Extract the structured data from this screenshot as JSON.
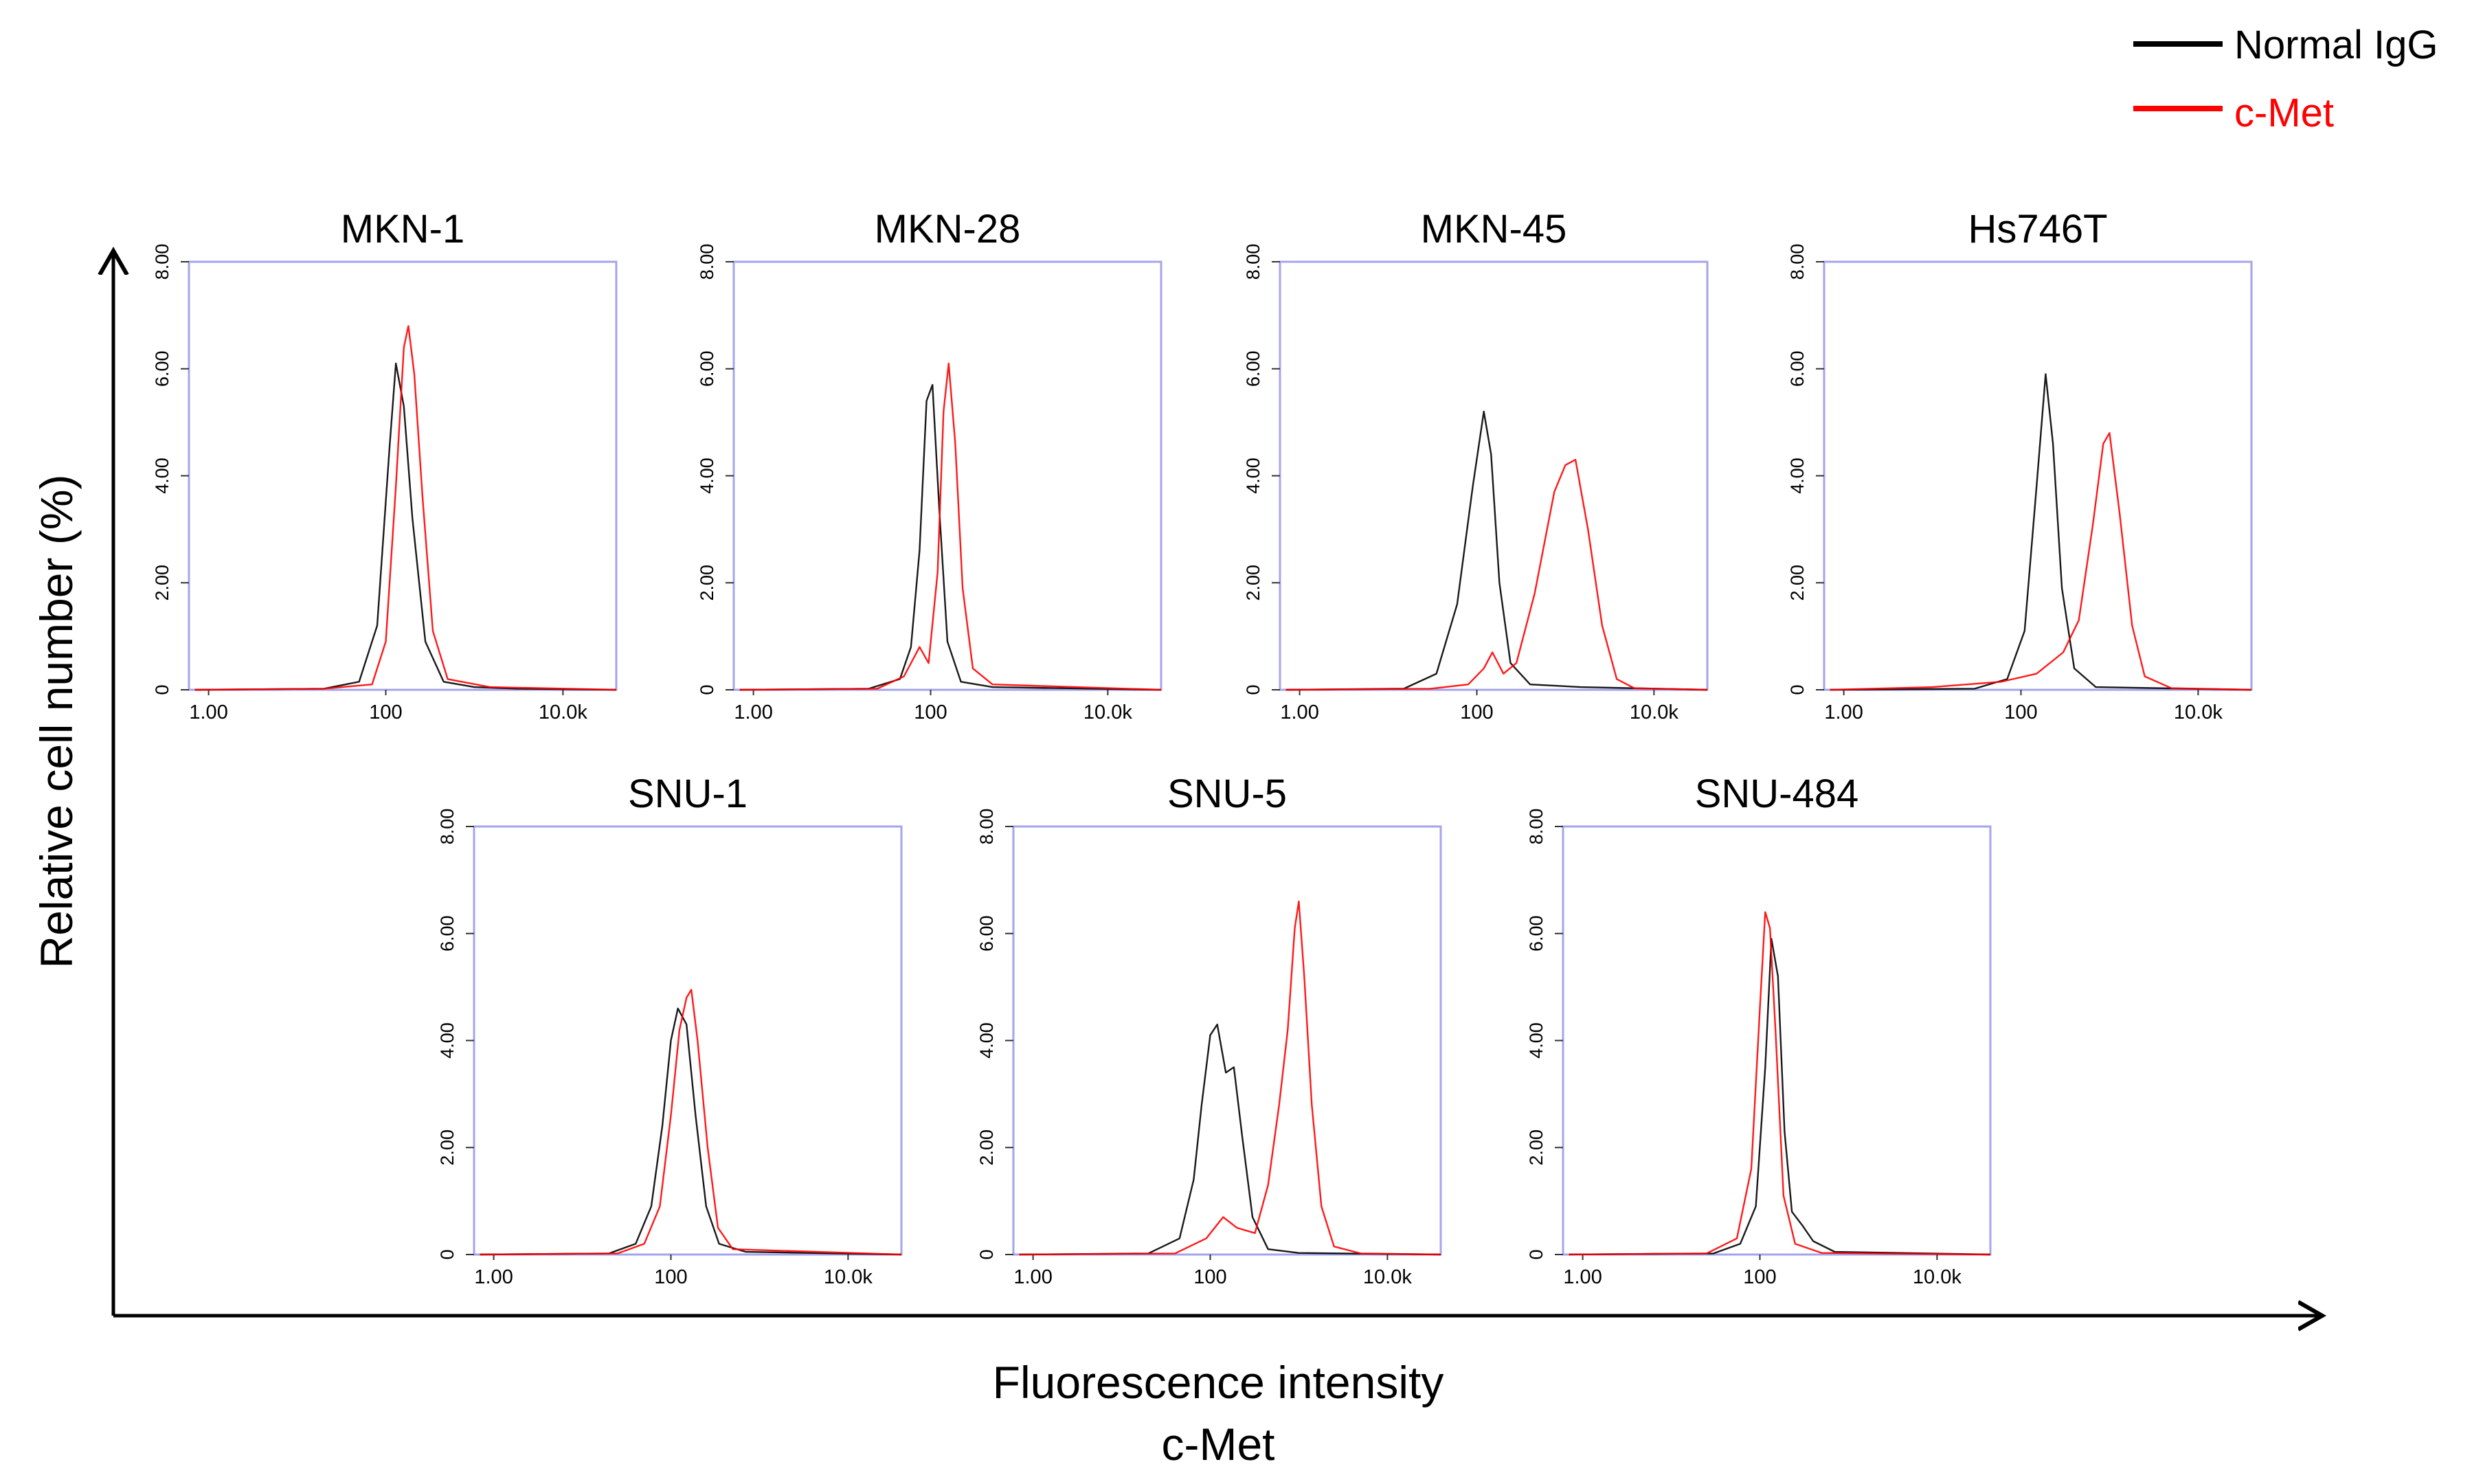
{
  "legend": {
    "entries": [
      {
        "label": "Normal IgG",
        "color": "#000000"
      },
      {
        "label": "c-Met",
        "color": "#ff0000"
      }
    ]
  },
  "axes": {
    "y_label": "Relative cell number (%)",
    "x_label_line1": "Fluorescence intensity",
    "x_label_line2": "c-Met"
  },
  "chart_data": [
    {
      "type": "line",
      "title": "MKN-1",
      "x_scale": "log",
      "xlim": [
        0.6,
        40000
      ],
      "ylim": [
        0,
        8
      ],
      "x_ticks": [
        {
          "value": 1,
          "label": "1.00"
        },
        {
          "value": 100,
          "label": "100"
        },
        {
          "value": 10000,
          "label": "10.0k"
        }
      ],
      "y_ticks": [
        {
          "value": 0,
          "label": "0"
        },
        {
          "value": 2,
          "label": "2.00"
        },
        {
          "value": 4,
          "label": "4.00"
        },
        {
          "value": 6,
          "label": "6.00"
        },
        {
          "value": 8,
          "label": "8.00"
        }
      ],
      "series": [
        {
          "name": "Normal IgG",
          "color": "#000000",
          "points": [
            [
              0.7,
              0
            ],
            [
              20,
              0.02
            ],
            [
              50,
              0.15
            ],
            [
              80,
              1.2
            ],
            [
              110,
              4.5
            ],
            [
              130,
              6.1
            ],
            [
              160,
              5.3
            ],
            [
              200,
              3.2
            ],
            [
              280,
              0.9
            ],
            [
              450,
              0.15
            ],
            [
              1000,
              0.05
            ],
            [
              3000,
              0.02
            ],
            [
              40000,
              0
            ]
          ]
        },
        {
          "name": "c-Met",
          "color": "#ff0000",
          "points": [
            [
              0.7,
              0
            ],
            [
              20,
              0.02
            ],
            [
              70,
              0.1
            ],
            [
              100,
              0.9
            ],
            [
              130,
              3.8
            ],
            [
              160,
              6.4
            ],
            [
              180,
              6.8
            ],
            [
              210,
              5.9
            ],
            [
              260,
              3.6
            ],
            [
              340,
              1.1
            ],
            [
              500,
              0.2
            ],
            [
              1500,
              0.05
            ],
            [
              40000,
              0
            ]
          ]
        }
      ]
    },
    {
      "type": "line",
      "title": "MKN-28",
      "x_scale": "log",
      "xlim": [
        0.6,
        40000
      ],
      "ylim": [
        0,
        8
      ],
      "x_ticks": [
        {
          "value": 1,
          "label": "1.00"
        },
        {
          "value": 100,
          "label": "100"
        },
        {
          "value": 10000,
          "label": "10.0k"
        }
      ],
      "y_ticks": [
        {
          "value": 0,
          "label": "0"
        },
        {
          "value": 2,
          "label": "2.00"
        },
        {
          "value": 4,
          "label": "4.00"
        },
        {
          "value": 6,
          "label": "6.00"
        },
        {
          "value": 8,
          "label": "8.00"
        }
      ],
      "series": [
        {
          "name": "Normal IgG",
          "color": "#000000",
          "points": [
            [
              0.7,
              0
            ],
            [
              20,
              0.02
            ],
            [
              45,
              0.2
            ],
            [
              60,
              0.8
            ],
            [
              75,
              2.6
            ],
            [
              90,
              5.4
            ],
            [
              105,
              5.7
            ],
            [
              125,
              3.4
            ],
            [
              155,
              0.9
            ],
            [
              220,
              0.15
            ],
            [
              500,
              0.05
            ],
            [
              40000,
              0
            ]
          ]
        },
        {
          "name": "c-Met",
          "color": "#ff0000",
          "points": [
            [
              0.7,
              0
            ],
            [
              25,
              0.02
            ],
            [
              50,
              0.25
            ],
            [
              75,
              0.8
            ],
            [
              95,
              0.5
            ],
            [
              120,
              2.2
            ],
            [
              140,
              5.2
            ],
            [
              160,
              6.1
            ],
            [
              190,
              4.6
            ],
            [
              230,
              1.9
            ],
            [
              300,
              0.4
            ],
            [
              500,
              0.1
            ],
            [
              40000,
              0
            ]
          ]
        }
      ]
    },
    {
      "type": "line",
      "title": "MKN-45",
      "x_scale": "log",
      "xlim": [
        0.6,
        40000
      ],
      "ylim": [
        0,
        8
      ],
      "x_ticks": [
        {
          "value": 1,
          "label": "1.00"
        },
        {
          "value": 100,
          "label": "100"
        },
        {
          "value": 10000,
          "label": "10.0k"
        }
      ],
      "y_ticks": [
        {
          "value": 0,
          "label": "0"
        },
        {
          "value": 2,
          "label": "2.00"
        },
        {
          "value": 4,
          "label": "4.00"
        },
        {
          "value": 6,
          "label": "6.00"
        },
        {
          "value": 8,
          "label": "8.00"
        }
      ],
      "series": [
        {
          "name": "Normal IgG",
          "color": "#000000",
          "points": [
            [
              0.7,
              0
            ],
            [
              15,
              0.02
            ],
            [
              35,
              0.3
            ],
            [
              60,
              1.6
            ],
            [
              90,
              3.8
            ],
            [
              120,
              5.2
            ],
            [
              145,
              4.4
            ],
            [
              180,
              2.0
            ],
            [
              240,
              0.5
            ],
            [
              400,
              0.1
            ],
            [
              1500,
              0.05
            ],
            [
              40000,
              0
            ]
          ]
        },
        {
          "name": "c-Met",
          "color": "#ff0000",
          "points": [
            [
              0.7,
              0
            ],
            [
              30,
              0.02
            ],
            [
              80,
              0.1
            ],
            [
              120,
              0.4
            ],
            [
              150,
              0.7
            ],
            [
              200,
              0.3
            ],
            [
              280,
              0.5
            ],
            [
              450,
              1.8
            ],
            [
              750,
              3.7
            ],
            [
              1000,
              4.2
            ],
            [
              1300,
              4.3
            ],
            [
              1800,
              3.0
            ],
            [
              2600,
              1.2
            ],
            [
              3800,
              0.2
            ],
            [
              6000,
              0.03
            ],
            [
              40000,
              0
            ]
          ]
        }
      ]
    },
    {
      "type": "line",
      "title": "Hs746T",
      "x_scale": "log",
      "xlim": [
        0.6,
        40000
      ],
      "ylim": [
        0,
        8
      ],
      "x_ticks": [
        {
          "value": 1,
          "label": "1.00"
        },
        {
          "value": 100,
          "label": "100"
        },
        {
          "value": 10000,
          "label": "10.0k"
        }
      ],
      "y_ticks": [
        {
          "value": 0,
          "label": "0"
        },
        {
          "value": 2,
          "label": "2.00"
        },
        {
          "value": 4,
          "label": "4.00"
        },
        {
          "value": 6,
          "label": "6.00"
        },
        {
          "value": 8,
          "label": "8.00"
        }
      ],
      "series": [
        {
          "name": "Normal IgG",
          "color": "#000000",
          "points": [
            [
              0.7,
              0
            ],
            [
              30,
              0.02
            ],
            [
              70,
              0.2
            ],
            [
              110,
              1.1
            ],
            [
              150,
              3.8
            ],
            [
              190,
              5.9
            ],
            [
              230,
              4.6
            ],
            [
              290,
              1.9
            ],
            [
              400,
              0.4
            ],
            [
              700,
              0.05
            ],
            [
              40000,
              0
            ]
          ]
        },
        {
          "name": "c-Met",
          "color": "#ff0000",
          "points": [
            [
              0.7,
              0
            ],
            [
              10,
              0.05
            ],
            [
              60,
              0.15
            ],
            [
              150,
              0.3
            ],
            [
              300,
              0.7
            ],
            [
              450,
              1.3
            ],
            [
              650,
              3.1
            ],
            [
              850,
              4.6
            ],
            [
              1000,
              4.8
            ],
            [
              1300,
              3.3
            ],
            [
              1800,
              1.2
            ],
            [
              2500,
              0.25
            ],
            [
              5000,
              0.03
            ],
            [
              40000,
              0
            ]
          ]
        }
      ]
    },
    {
      "type": "line",
      "title": "SNU-1",
      "x_scale": "log",
      "xlim": [
        0.6,
        40000
      ],
      "ylim": [
        0,
        8
      ],
      "x_ticks": [
        {
          "value": 1,
          "label": "1.00"
        },
        {
          "value": 100,
          "label": "100"
        },
        {
          "value": 10000,
          "label": "10.0k"
        }
      ],
      "y_ticks": [
        {
          "value": 0,
          "label": "0"
        },
        {
          "value": 2,
          "label": "2.00"
        },
        {
          "value": 4,
          "label": "4.00"
        },
        {
          "value": 6,
          "label": "6.00"
        },
        {
          "value": 8,
          "label": "8.00"
        }
      ],
      "series": [
        {
          "name": "Normal IgG",
          "color": "#000000",
          "points": [
            [
              0.7,
              0
            ],
            [
              20,
              0.02
            ],
            [
              40,
              0.2
            ],
            [
              60,
              0.9
            ],
            [
              80,
              2.4
            ],
            [
              100,
              4.0
            ],
            [
              120,
              4.6
            ],
            [
              150,
              4.3
            ],
            [
              190,
              2.6
            ],
            [
              250,
              0.9
            ],
            [
              350,
              0.2
            ],
            [
              700,
              0.05
            ],
            [
              40000,
              0
            ]
          ]
        },
        {
          "name": "c-Met",
          "color": "#ff0000",
          "points": [
            [
              0.7,
              0
            ],
            [
              25,
              0.02
            ],
            [
              50,
              0.2
            ],
            [
              75,
              0.9
            ],
            [
              100,
              2.6
            ],
            [
              125,
              4.2
            ],
            [
              150,
              4.8
            ],
            [
              170,
              4.95
            ],
            [
              200,
              4.0
            ],
            [
              260,
              2.0
            ],
            [
              340,
              0.5
            ],
            [
              500,
              0.1
            ],
            [
              40000,
              0
            ]
          ]
        }
      ]
    },
    {
      "type": "line",
      "title": "SNU-5",
      "x_scale": "log",
      "xlim": [
        0.6,
        40000
      ],
      "ylim": [
        0,
        8
      ],
      "x_ticks": [
        {
          "value": 1,
          "label": "1.00"
        },
        {
          "value": 100,
          "label": "100"
        },
        {
          "value": 10000,
          "label": "10.0k"
        }
      ],
      "y_ticks": [
        {
          "value": 0,
          "label": "0"
        },
        {
          "value": 2,
          "label": "2.00"
        },
        {
          "value": 4,
          "label": "4.00"
        },
        {
          "value": 6,
          "label": "6.00"
        },
        {
          "value": 8,
          "label": "8.00"
        }
      ],
      "series": [
        {
          "name": "Normal IgG",
          "color": "#000000",
          "points": [
            [
              0.7,
              0
            ],
            [
              20,
              0.02
            ],
            [
              45,
              0.3
            ],
            [
              65,
              1.4
            ],
            [
              80,
              2.8
            ],
            [
              100,
              4.1
            ],
            [
              120,
              4.3
            ],
            [
              150,
              3.4
            ],
            [
              185,
              3.5
            ],
            [
              230,
              2.2
            ],
            [
              300,
              0.7
            ],
            [
              450,
              0.1
            ],
            [
              1000,
              0.03
            ],
            [
              40000,
              0
            ]
          ]
        },
        {
          "name": "c-Met",
          "color": "#ff0000",
          "points": [
            [
              0.7,
              0
            ],
            [
              40,
              0.02
            ],
            [
              90,
              0.3
            ],
            [
              140,
              0.7
            ],
            [
              200,
              0.5
            ],
            [
              320,
              0.4
            ],
            [
              450,
              1.3
            ],
            [
              600,
              2.8
            ],
            [
              750,
              4.2
            ],
            [
              900,
              6.1
            ],
            [
              1000,
              6.6
            ],
            [
              1150,
              5.2
            ],
            [
              1400,
              2.8
            ],
            [
              1800,
              0.9
            ],
            [
              2500,
              0.15
            ],
            [
              5000,
              0.02
            ],
            [
              40000,
              0
            ]
          ]
        }
      ]
    },
    {
      "type": "line",
      "title": "SNU-484",
      "x_scale": "log",
      "xlim": [
        0.6,
        40000
      ],
      "ylim": [
        0,
        8
      ],
      "x_ticks": [
        {
          "value": 1,
          "label": "1.00"
        },
        {
          "value": 100,
          "label": "100"
        },
        {
          "value": 10000,
          "label": "10.0k"
        }
      ],
      "y_ticks": [
        {
          "value": 0,
          "label": "0"
        },
        {
          "value": 2,
          "label": "2.00"
        },
        {
          "value": 4,
          "label": "4.00"
        },
        {
          "value": 6,
          "label": "6.00"
        },
        {
          "value": 8,
          "label": "8.00"
        }
      ],
      "series": [
        {
          "name": "Normal IgG",
          "color": "#000000",
          "points": [
            [
              0.7,
              0
            ],
            [
              30,
              0.02
            ],
            [
              60,
              0.2
            ],
            [
              90,
              0.9
            ],
            [
              115,
              3.5
            ],
            [
              135,
              5.9
            ],
            [
              160,
              5.2
            ],
            [
              190,
              2.3
            ],
            [
              230,
              0.8
            ],
            [
              300,
              0.55
            ],
            [
              400,
              0.25
            ],
            [
              700,
              0.05
            ],
            [
              40000,
              0
            ]
          ]
        },
        {
          "name": "c-Met",
          "color": "#ff0000",
          "points": [
            [
              0.7,
              0
            ],
            [
              25,
              0.02
            ],
            [
              55,
              0.3
            ],
            [
              80,
              1.6
            ],
            [
              100,
              4.6
            ],
            [
              115,
              6.4
            ],
            [
              130,
              6.1
            ],
            [
              150,
              4.2
            ],
            [
              185,
              1.1
            ],
            [
              250,
              0.2
            ],
            [
              500,
              0.03
            ],
            [
              40000,
              0
            ]
          ]
        }
      ]
    }
  ]
}
